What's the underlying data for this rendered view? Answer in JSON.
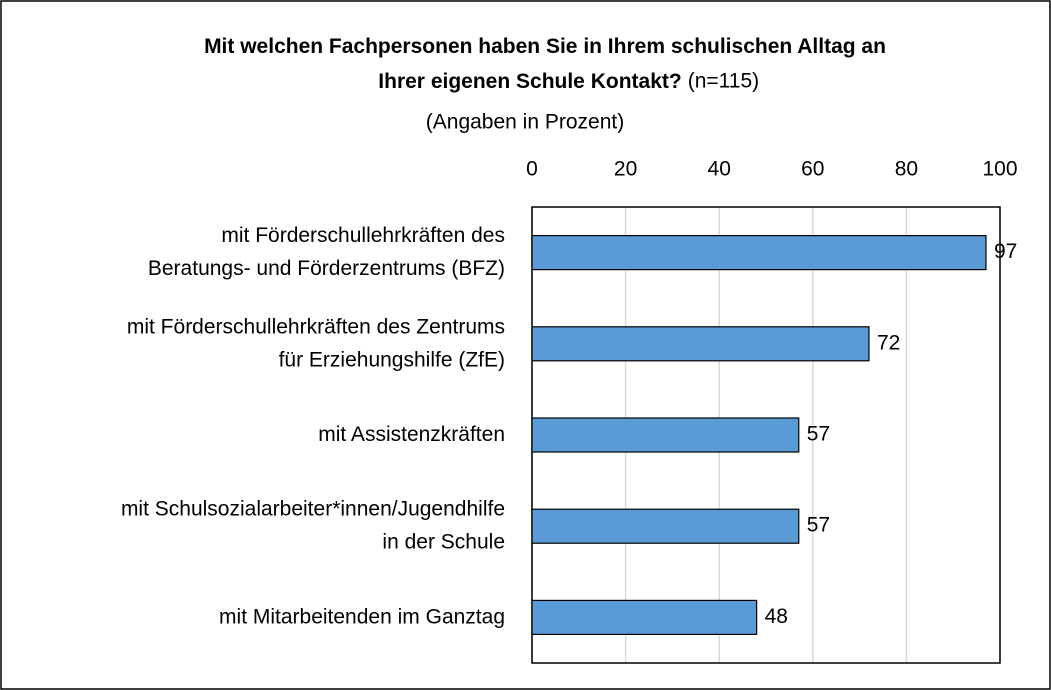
{
  "chart_data": {
    "type": "bar",
    "orientation": "horizontal",
    "title": "Mit welchen Fachpersonen haben Sie in Ihrem schulischen Alltag an\nIhrer eigenen Schule Kontakt?",
    "title_note": "(n=115)",
    "subtitle": "(Angaben in Prozent)",
    "categories": [
      "mit Förderschullehrkräften des\nBeratungs- und Förderzentrums (BFZ)",
      "mit Förderschullehrkräften des Zentrums\nfür Erziehungshilfe (ZfE)",
      "mit Assistenzkräften",
      "mit Schulsozialarbeiter*innen/Jugendhilfe\nin der Schule",
      "mit Mitarbeitenden im Ganztag"
    ],
    "values": [
      97,
      72,
      57,
      57,
      48
    ],
    "color": "#5b9bd5",
    "xlim": [
      0,
      100
    ],
    "xticks": [
      0,
      20,
      40,
      60,
      80,
      100
    ],
    "grid": true
  }
}
